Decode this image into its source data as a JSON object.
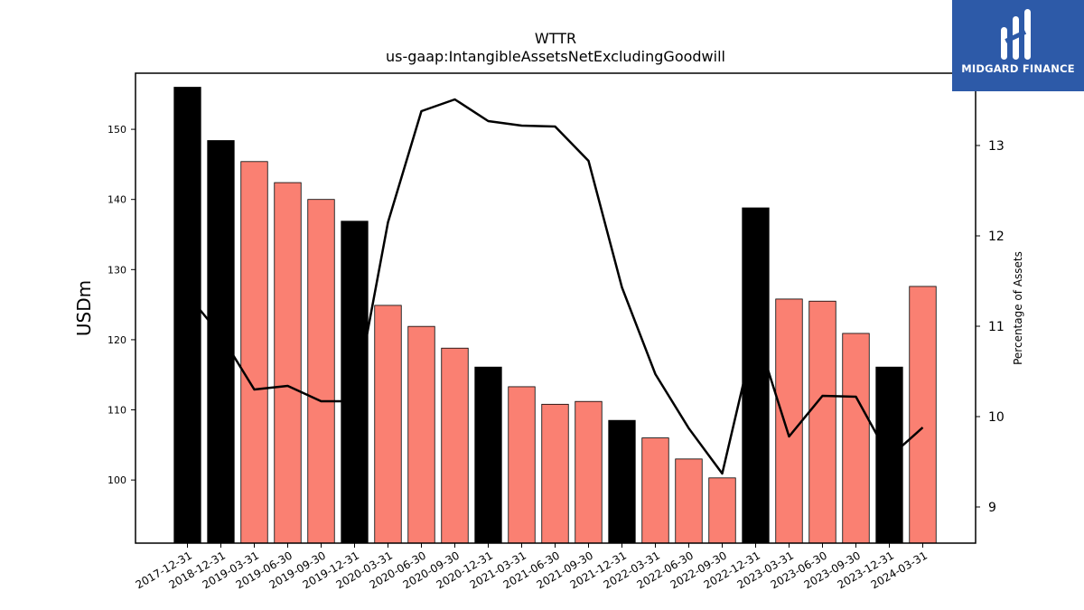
{
  "chart_data": {
    "type": "bar",
    "title": "WTTR",
    "subtitle": "us-gaap:IntangibleAssetsNetExcludingGoodwill",
    "ylabel": "USDm",
    "y2label": "Percentage of Assets",
    "categories": [
      "2017-12-31",
      "2018-12-31",
      "2019-03-31",
      "2019-06-30",
      "2019-09-30",
      "2019-12-31",
      "2020-03-31",
      "2020-06-30",
      "2020-09-30",
      "2020-12-31",
      "2021-03-31",
      "2021-06-30",
      "2021-09-30",
      "2021-12-31",
      "2022-03-31",
      "2022-06-30",
      "2022-09-30",
      "2022-12-31",
      "2023-03-31",
      "2023-06-30",
      "2023-09-30",
      "2023-12-31",
      "2024-03-31"
    ],
    "series": [
      {
        "axis": "left",
        "values": [
          156.0,
          148.4,
          145.4,
          142.4,
          140.0,
          136.9,
          124.9,
          121.9,
          118.8,
          116.1,
          113.3,
          110.8,
          111.2,
          108.5,
          106.0,
          103.0,
          100.3,
          138.8,
          125.8,
          125.5,
          120.9,
          116.1,
          127.6
        ],
        "bar_colors": [
          "#000000",
          "#000000",
          "#fa8072",
          "#fa8072",
          "#fa8072",
          "#000000",
          "#fa8072",
          "#fa8072",
          "#fa8072",
          "#000000",
          "#fa8072",
          "#fa8072",
          "#fa8072",
          "#000000",
          "#fa8072",
          "#fa8072",
          "#fa8072",
          "#000000",
          "#fa8072",
          "#fa8072",
          "#fa8072",
          "#000000",
          "#fa8072"
        ]
      },
      {
        "axis": "right",
        "type": "line",
        "color": "#000000",
        "values": [
          11.35,
          10.9,
          10.3,
          10.34,
          10.17,
          10.17,
          12.15,
          13.38,
          13.51,
          13.27,
          13.22,
          13.21,
          12.83,
          11.43,
          10.47,
          9.87,
          9.37,
          10.95,
          9.78,
          10.23,
          10.22,
          9.55,
          9.88
        ]
      }
    ],
    "ylim": [
      91,
      158
    ],
    "yticks": [
      100,
      110,
      120,
      130,
      140,
      150
    ],
    "y2lim": [
      8.6,
      13.8
    ],
    "y2ticks": [
      9,
      10,
      11,
      12,
      13
    ],
    "grid": false
  },
  "logo": {
    "text": "MIDGARD FINANCE",
    "bg_color": "#2d5aa8"
  }
}
